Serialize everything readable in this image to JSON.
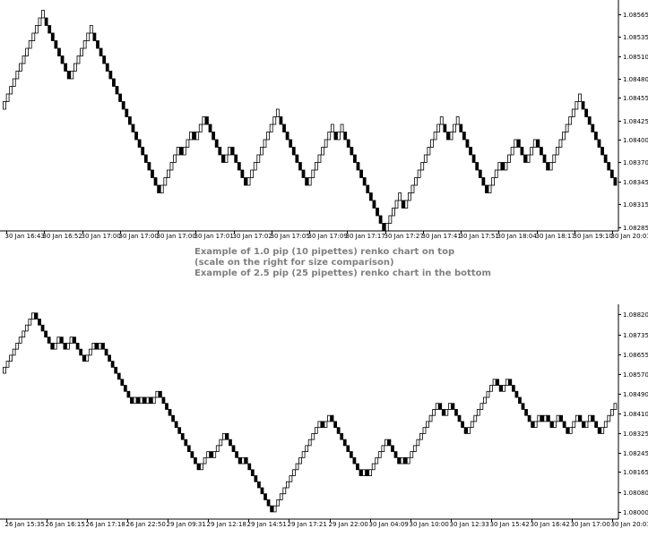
{
  "caption": {
    "line1": "Example of 1.0 pip (10 pipettes) renko chart on top",
    "line2": "(scale on the right for size comparison)",
    "line3": "Example of 2.5 pip (25 pipettes) renko chart in the bottom"
  },
  "colors": {
    "up": "#ffffff",
    "down": "#000000",
    "axis": "#000000",
    "text": "#000000",
    "caption": "#7f7f7f"
  },
  "chart_data": [
    {
      "type": "renko",
      "brick_size": 0.0001,
      "y_ticks": [
        "1.08565",
        "1.08535",
        "1.08510",
        "1.08480",
        "1.08455",
        "1.08425",
        "1.08400",
        "1.08370",
        "1.08345",
        "1.08315",
        "1.08285"
      ],
      "ylim": [
        1.0828,
        1.0858
      ],
      "x_tick_labels": [
        "30 Jan 16:43",
        "30 Jan 16:52",
        "30 Jan 17:00",
        "30 Jan 17:00",
        "30 Jan 17:00",
        "30 Jan 17:01",
        "30 Jan 17:02",
        "30 Jan 17:05",
        "30 Jan 17:09",
        "30 Jan 17:17",
        "30 Jan 17:27",
        "30 Jan 17:41",
        "30 Jan 17:51",
        "30 Jan 18:04",
        "30 Jan 18:17",
        "30 Jan 19:10",
        "30 Jan 20:01"
      ],
      "closes": [
        1.0845,
        1.0846,
        1.0847,
        1.0848,
        1.0849,
        1.085,
        1.0851,
        1.0852,
        1.0853,
        1.0854,
        1.0855,
        1.0856,
        1.0857,
        1.0855,
        1.0854,
        1.0853,
        1.0852,
        1.0851,
        1.085,
        1.0849,
        1.0848,
        1.0849,
        1.085,
        1.0851,
        1.0852,
        1.0853,
        1.0854,
        1.0855,
        1.0853,
        1.0852,
        1.0851,
        1.085,
        1.0849,
        1.0848,
        1.0847,
        1.0846,
        1.0845,
        1.0844,
        1.0843,
        1.0842,
        1.0841,
        1.084,
        1.0839,
        1.0838,
        1.0837,
        1.0836,
        1.0835,
        1.0834,
        1.0833,
        1.0834,
        1.0835,
        1.0836,
        1.0837,
        1.0838,
        1.0839,
        1.0838,
        1.0839,
        1.084,
        1.0841,
        1.084,
        1.0841,
        1.0842,
        1.0843,
        1.0842,
        1.0841,
        1.084,
        1.0839,
        1.0838,
        1.0837,
        1.0838,
        1.0839,
        1.0838,
        1.0837,
        1.0836,
        1.0835,
        1.0834,
        1.0835,
        1.0836,
        1.0837,
        1.0838,
        1.0839,
        1.084,
        1.0841,
        1.0842,
        1.0843,
        1.0844,
        1.0842,
        1.0841,
        1.084,
        1.0839,
        1.0838,
        1.0837,
        1.0836,
        1.0835,
        1.0834,
        1.0835,
        1.0836,
        1.0837,
        1.0838,
        1.0839,
        1.084,
        1.0841,
        1.0842,
        1.084,
        1.0841,
        1.0842,
        1.084,
        1.0839,
        1.0838,
        1.0837,
        1.0836,
        1.0835,
        1.0834,
        1.0833,
        1.0832,
        1.0831,
        1.083,
        1.0829,
        1.0828,
        1.0829,
        1.083,
        1.0831,
        1.0832,
        1.0833,
        1.0831,
        1.0832,
        1.0833,
        1.0834,
        1.0835,
        1.0836,
        1.0837,
        1.0838,
        1.0839,
        1.084,
        1.0841,
        1.0842,
        1.0843,
        1.0841,
        1.084,
        1.0841,
        1.0842,
        1.0843,
        1.0841,
        1.084,
        1.0839,
        1.0838,
        1.0837,
        1.0836,
        1.0835,
        1.0834,
        1.0833,
        1.0834,
        1.0835,
        1.0836,
        1.0837,
        1.0836,
        1.0837,
        1.0838,
        1.0839,
        1.084,
        1.0839,
        1.0838,
        1.0837,
        1.0838,
        1.0839,
        1.084,
        1.0839,
        1.0838,
        1.0837,
        1.0836,
        1.0837,
        1.0838,
        1.0839,
        1.084,
        1.0841,
        1.0842,
        1.0843,
        1.0844,
        1.0845,
        1.0846,
        1.0844,
        1.0843,
        1.0842,
        1.0841,
        1.084,
        1.0839,
        1.0838,
        1.0837,
        1.0836,
        1.0835,
        1.0834
      ]
    },
    {
      "type": "renko",
      "brick_size": 0.00025,
      "y_ticks": [
        "1.08820",
        "1.08735",
        "1.08655",
        "1.08570",
        "1.08490",
        "1.08410",
        "1.08325",
        "1.08245",
        "1.08165",
        "1.08080",
        "1.08000"
      ],
      "ylim": [
        1.0797,
        1.0885
      ],
      "x_tick_labels": [
        "26 Jan 15:35",
        "26 Jan 16:15",
        "26 Jan 17:18",
        "26 Jan 22:50",
        "29 Jan 09:31",
        "29 Jan 12:18",
        "29 Jan 14:51",
        "29 Jan 17:21",
        "29 Jan 22:00",
        "30 Jan 04:09",
        "30 Jan 10:00",
        "30 Jan 12:33",
        "30 Jan 15:42",
        "30 Jan 16:42",
        "30 Jan 17:00",
        "30 Jan 20:01"
      ],
      "closes": [
        1.086,
        1.08625,
        1.0865,
        1.08675,
        1.087,
        1.08725,
        1.0875,
        1.08775,
        1.088,
        1.08825,
        1.088,
        1.08775,
        1.0875,
        1.08725,
        1.087,
        1.08675,
        1.087,
        1.08725,
        1.087,
        1.08675,
        1.087,
        1.08725,
        1.087,
        1.08675,
        1.0865,
        1.08625,
        1.0865,
        1.08675,
        1.087,
        1.08675,
        1.087,
        1.08675,
        1.0865,
        1.08625,
        1.086,
        1.08575,
        1.0855,
        1.08525,
        1.085,
        1.08475,
        1.0845,
        1.08475,
        1.0845,
        1.08475,
        1.0845,
        1.08475,
        1.0845,
        1.08475,
        1.085,
        1.08475,
        1.0845,
        1.08425,
        1.084,
        1.08375,
        1.0835,
        1.08325,
        1.083,
        1.08275,
        1.0825,
        1.08225,
        1.082,
        1.08175,
        1.082,
        1.08225,
        1.0825,
        1.08225,
        1.0825,
        1.08275,
        1.083,
        1.08325,
        1.083,
        1.08275,
        1.0825,
        1.08225,
        1.082,
        1.08225,
        1.082,
        1.08175,
        1.0815,
        1.08125,
        1.081,
        1.08075,
        1.0805,
        1.08025,
        1.08,
        1.08025,
        1.0805,
        1.08075,
        1.081,
        1.08125,
        1.0815,
        1.08175,
        1.082,
        1.08225,
        1.0825,
        1.08275,
        1.083,
        1.08325,
        1.0835,
        1.08375,
        1.0835,
        1.08375,
        1.084,
        1.08375,
        1.0835,
        1.08325,
        1.083,
        1.08275,
        1.0825,
        1.08225,
        1.082,
        1.08175,
        1.0815,
        1.08175,
        1.0815,
        1.08175,
        1.082,
        1.08225,
        1.0825,
        1.08275,
        1.083,
        1.08275,
        1.0825,
        1.08225,
        1.082,
        1.08225,
        1.082,
        1.08225,
        1.0825,
        1.08275,
        1.083,
        1.08325,
        1.0835,
        1.08375,
        1.084,
        1.08425,
        1.0845,
        1.08425,
        1.084,
        1.08425,
        1.0845,
        1.08425,
        1.084,
        1.08375,
        1.0835,
        1.08325,
        1.0835,
        1.08375,
        1.084,
        1.08425,
        1.0845,
        1.08475,
        1.085,
        1.08525,
        1.0855,
        1.08525,
        1.085,
        1.08525,
        1.0855,
        1.08525,
        1.085,
        1.08475,
        1.0845,
        1.08425,
        1.084,
        1.08375,
        1.0835,
        1.08375,
        1.084,
        1.08375,
        1.084,
        1.08375,
        1.0835,
        1.08375,
        1.084,
        1.08375,
        1.0835,
        1.08325,
        1.0835,
        1.08375,
        1.084,
        1.08375,
        1.0835,
        1.08375,
        1.084,
        1.08375,
        1.0835,
        1.08325,
        1.0835,
        1.08375,
        1.084,
        1.08425,
        1.0845
      ]
    }
  ]
}
